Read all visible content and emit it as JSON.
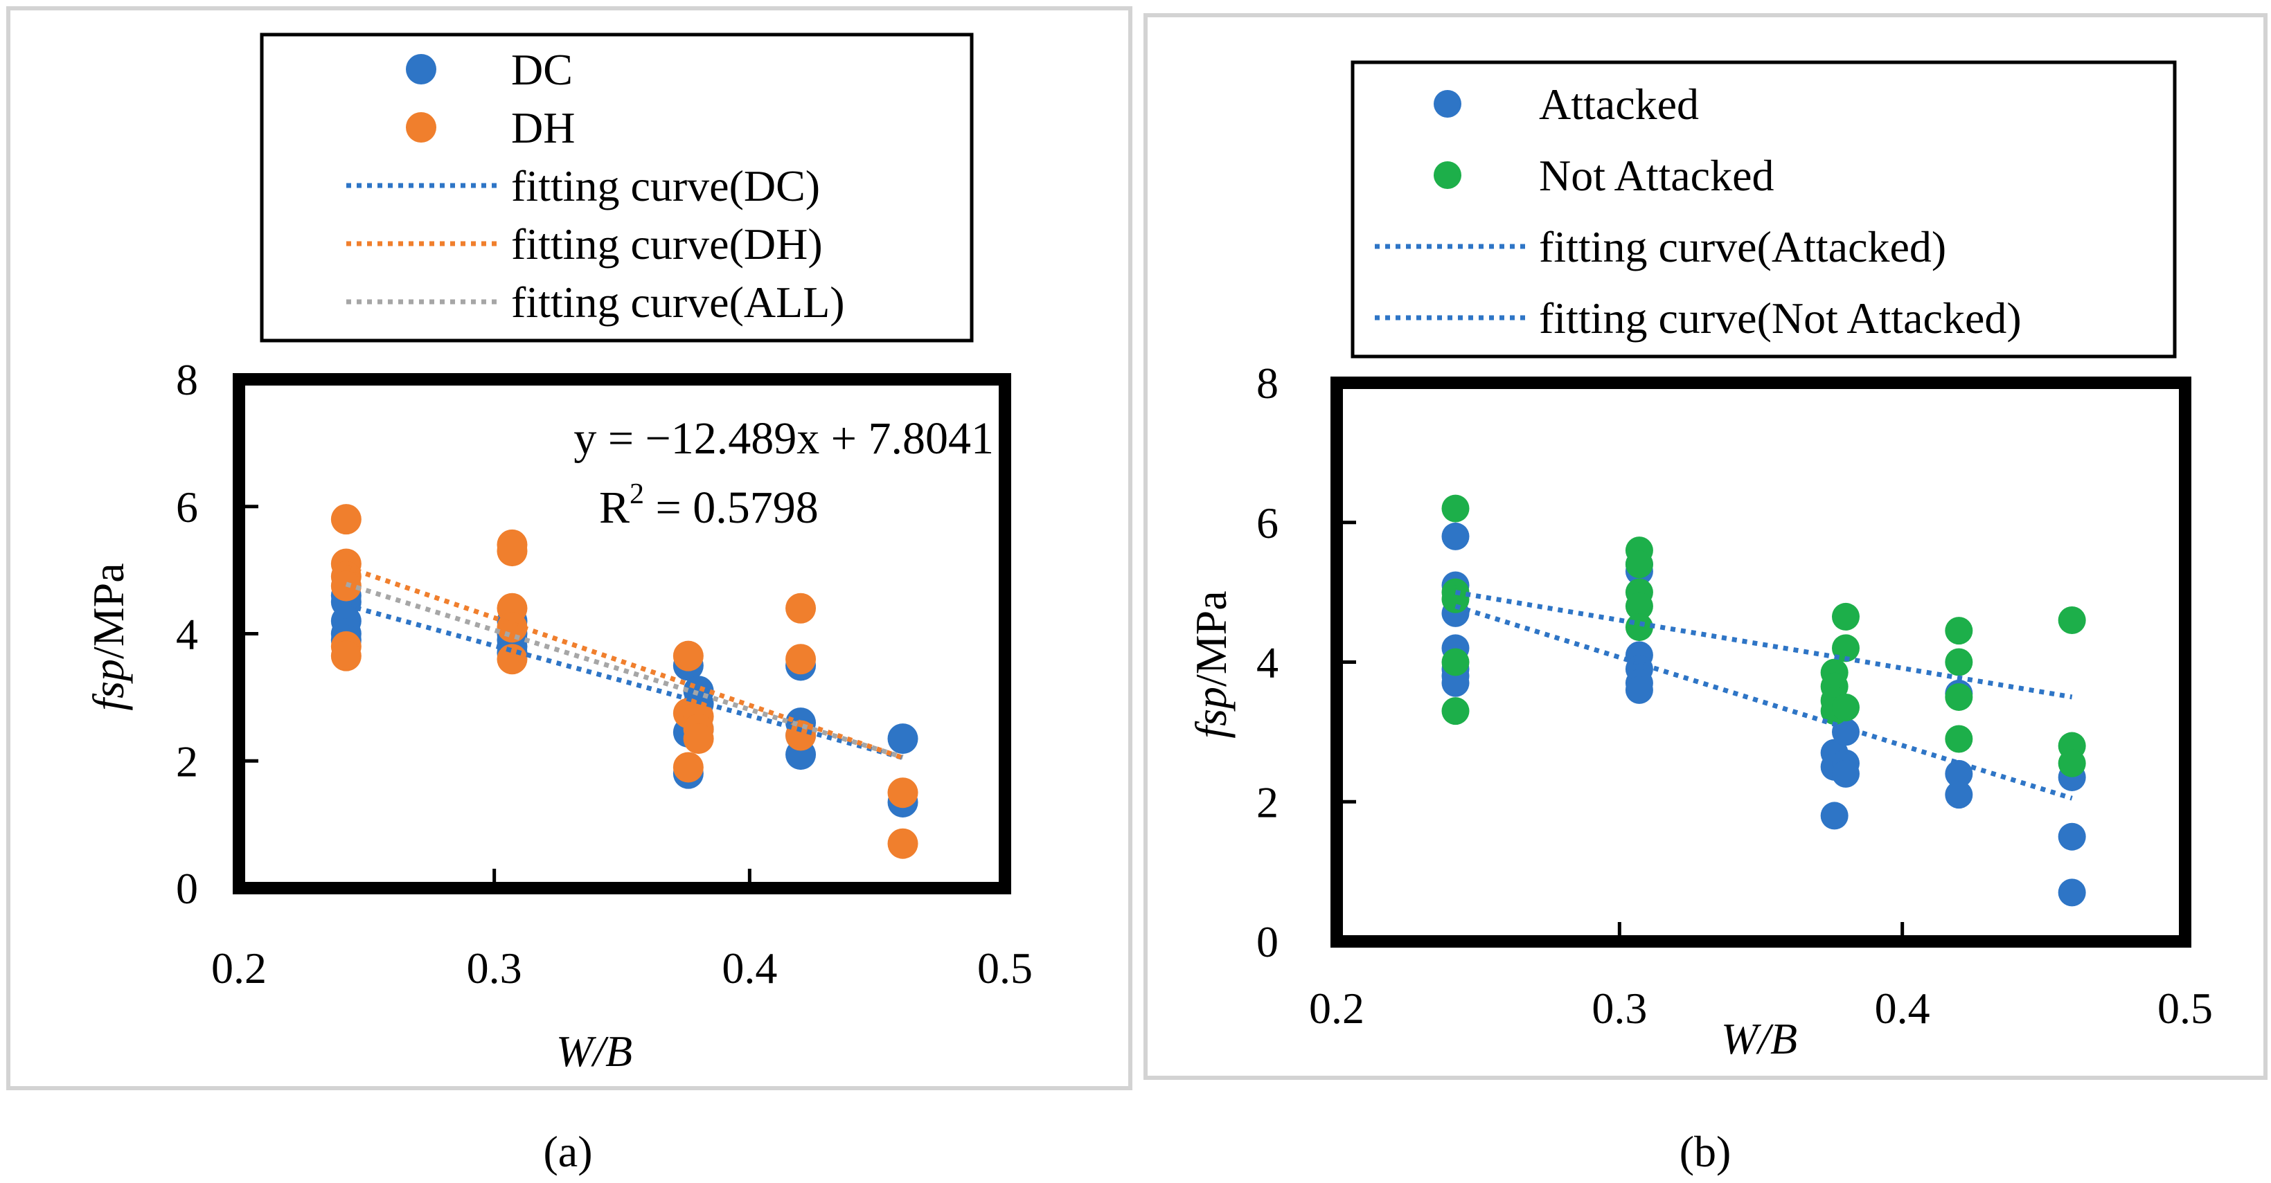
{
  "colors": {
    "blue": "#2E75C6",
    "orange": "#F07F2D",
    "green": "#1DAF4A",
    "gray": "#A6A6A6",
    "fit_blue": "#2E75C6",
    "fit_orange": "#F07F2D",
    "frame": "#D3D3D3"
  },
  "panel_labels": [
    "(a)",
    "(b)"
  ],
  "chart_data": [
    {
      "id": "a",
      "type": "scatter",
      "panel_label": "(a)",
      "xlabel": "W/B",
      "ylabel_italic": "fsp",
      "ylabel_unit": "/MPa",
      "xlim": [
        0.2,
        0.5
      ],
      "ylim": [
        0,
        8
      ],
      "xticks": [
        "0.2",
        "0.3",
        "0.4",
        "0.5"
      ],
      "yticks": [
        "0",
        "2",
        "4",
        "6",
        "8"
      ],
      "legend": [
        {
          "label": "DC",
          "kind": "marker",
          "color": "#2E75C6"
        },
        {
          "label": "DH",
          "kind": "marker",
          "color": "#F07F2D"
        },
        {
          "label": "fitting curve(DC)",
          "kind": "dotted",
          "color": "#2E75C6"
        },
        {
          "label": "fitting curve(DH)",
          "kind": "dotted",
          "color": "#F07F2D"
        },
        {
          "label": "fitting curve(ALL)",
          "kind": "dotted",
          "color": "#A6A6A6"
        }
      ],
      "annotation_lines": [
        "y = −12.489x + 7.8041",
        "R",
        "2",
        " = 0.5798"
      ],
      "series": [
        {
          "name": "DC",
          "color": "#2E75C6",
          "x": [
            0.242,
            0.242,
            0.242,
            0.242,
            0.242,
            0.307,
            0.307,
            0.307,
            0.307,
            0.307,
            0.376,
            0.376,
            0.376,
            0.38,
            0.38,
            0.38,
            0.42,
            0.42,
            0.42,
            0.42,
            0.46,
            0.46
          ],
          "y": [
            4.6,
            4.5,
            4.2,
            4.0,
            3.9,
            4.2,
            4.0,
            3.9,
            3.8,
            3.7,
            3.5,
            2.45,
            1.8,
            3.1,
            2.9,
            2.5,
            3.5,
            2.6,
            2.4,
            2.1,
            2.35,
            1.35
          ]
        },
        {
          "name": "DH",
          "color": "#F07F2D",
          "x": [
            0.242,
            0.242,
            0.242,
            0.242,
            0.242,
            0.242,
            0.307,
            0.307,
            0.307,
            0.307,
            0.307,
            0.376,
            0.376,
            0.376,
            0.38,
            0.38,
            0.38,
            0.42,
            0.42,
            0.42,
            0.46,
            0.46
          ],
          "y": [
            5.8,
            5.1,
            4.9,
            4.75,
            3.8,
            3.65,
            5.4,
            5.3,
            4.4,
            4.1,
            3.6,
            3.65,
            2.75,
            1.9,
            2.7,
            2.5,
            2.35,
            4.4,
            3.6,
            2.4,
            1.5,
            0.7
          ]
        }
      ],
      "fits": [
        {
          "name": "fitting curve(DC)",
          "color": "#2E75C6",
          "x": [
            0.242,
            0.46
          ],
          "y": [
            4.45,
            2.05
          ]
        },
        {
          "name": "fitting curve(DH)",
          "color": "#F07F2D",
          "x": [
            0.242,
            0.46
          ],
          "y": [
            5.05,
            2.05
          ]
        },
        {
          "name": "fitting curve(ALL)",
          "color": "#A6A6A6",
          "x": [
            0.242,
            0.46
          ],
          "y": [
            4.78,
            2.06
          ]
        }
      ]
    },
    {
      "id": "b",
      "type": "scatter",
      "panel_label": "(b)",
      "xlabel": "W/B",
      "ylabel_italic": "fsp",
      "ylabel_unit": "/MPa",
      "xlim": [
        0.2,
        0.5
      ],
      "ylim": [
        0,
        8
      ],
      "xticks": [
        "0.2",
        "0.3",
        "0.4",
        "0.5"
      ],
      "yticks": [
        "0",
        "2",
        "4",
        "6",
        "8"
      ],
      "legend": [
        {
          "label": "Attacked",
          "kind": "marker",
          "color": "#2E75C6"
        },
        {
          "label": "Not Attacked",
          "kind": "marker",
          "color": "#1DAF4A"
        },
        {
          "label": "fitting curve(Attacked)",
          "kind": "dotted",
          "color": "#2E75C6"
        },
        {
          "label": "fitting curve(Not Attacked)",
          "kind": "dotted",
          "color": "#2E75C6"
        }
      ],
      "series": [
        {
          "name": "Attacked",
          "color": "#2E75C6",
          "x": [
            0.242,
            0.242,
            0.242,
            0.242,
            0.242,
            0.242,
            0.242,
            0.307,
            0.307,
            0.307,
            0.307,
            0.307,
            0.307,
            0.376,
            0.376,
            0.376,
            0.38,
            0.38,
            0.38,
            0.42,
            0.42,
            0.42,
            0.46,
            0.46,
            0.46
          ],
          "y": [
            5.8,
            5.1,
            4.7,
            4.2,
            3.9,
            3.8,
            3.7,
            5.4,
            5.3,
            4.1,
            3.9,
            3.7,
            3.6,
            2.7,
            2.5,
            1.8,
            3.0,
            2.55,
            2.4,
            3.55,
            2.4,
            2.1,
            2.35,
            1.5,
            0.7
          ]
        },
        {
          "name": "Not Attacked",
          "color": "#1DAF4A",
          "x": [
            0.242,
            0.242,
            0.242,
            0.242,
            0.242,
            0.307,
            0.307,
            0.307,
            0.307,
            0.307,
            0.376,
            0.376,
            0.376,
            0.376,
            0.38,
            0.38,
            0.38,
            0.42,
            0.42,
            0.42,
            0.42,
            0.46,
            0.46,
            0.46
          ],
          "y": [
            6.2,
            5.0,
            4.9,
            4.0,
            3.3,
            5.6,
            5.4,
            5.0,
            4.8,
            4.5,
            3.85,
            3.65,
            3.45,
            3.3,
            4.65,
            4.2,
            3.35,
            4.45,
            4.0,
            3.5,
            2.9,
            4.6,
            2.8,
            2.55
          ]
        }
      ],
      "fits": [
        {
          "name": "fitting curve(Attacked)",
          "color": "#2E75C6",
          "x": [
            0.242,
            0.46
          ],
          "y": [
            4.8,
            2.05
          ]
        },
        {
          "name": "fitting curve(Not Attacked)",
          "color": "#2E75C6",
          "x": [
            0.242,
            0.46
          ],
          "y": [
            5.0,
            3.5
          ]
        }
      ]
    }
  ]
}
